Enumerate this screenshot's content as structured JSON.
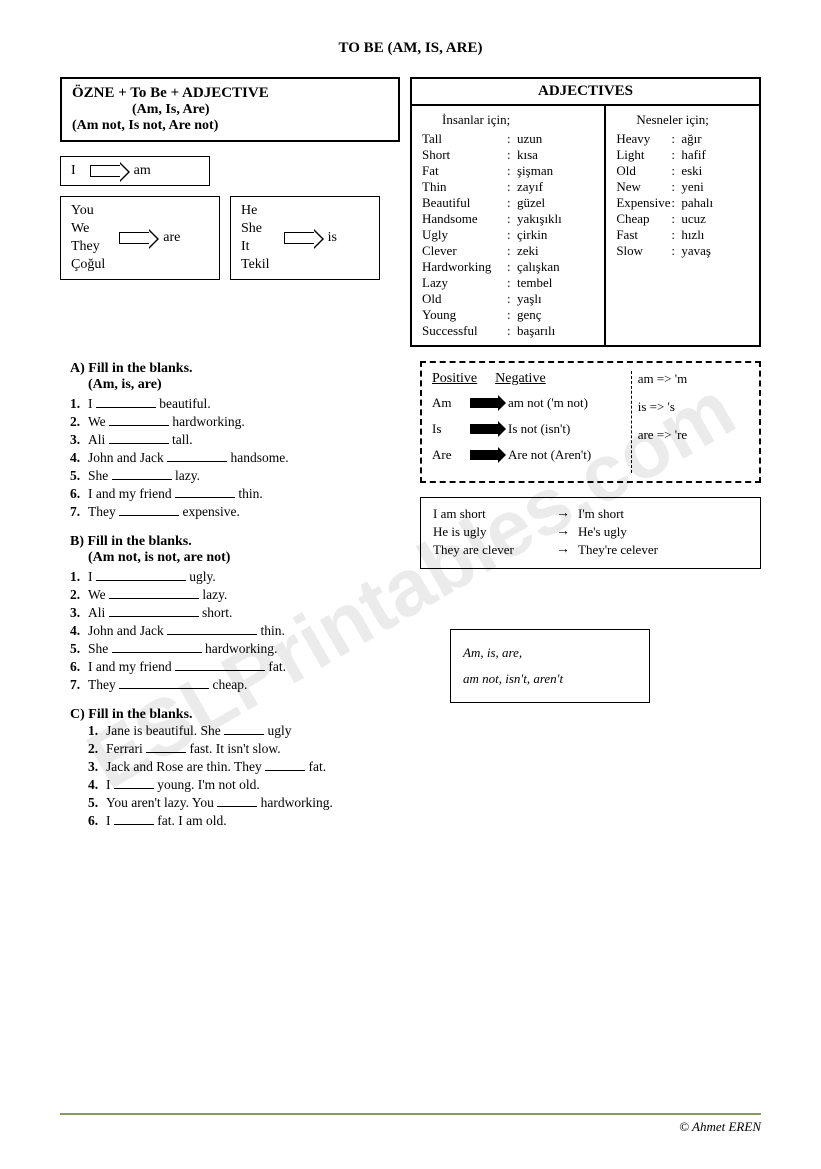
{
  "title": "TO BE (AM, IS, ARE)",
  "formula": {
    "line1": "ÖZNE   +  To Be  +  ADJECTIVE",
    "line2": "(Am, Is, Are)",
    "line3": "(Am not, Is not, Are not)"
  },
  "pronouns": {
    "i": {
      "subject": "I",
      "verb": "am"
    },
    "are": {
      "subjects": [
        "You",
        "We",
        "They",
        "Çoğul"
      ],
      "verb": "are"
    },
    "is": {
      "subjects": [
        "He",
        "She",
        "It",
        "Tekil"
      ],
      "verb": "is"
    }
  },
  "adjectives": {
    "title": "ADJECTIVES",
    "people_head": "İnsanlar için;",
    "things_head": "Nesneler için;",
    "people": [
      {
        "en": "Tall",
        "tr": "uzun"
      },
      {
        "en": "Short",
        "tr": "kısa"
      },
      {
        "en": "Fat",
        "tr": "şişman"
      },
      {
        "en": "Thin",
        "tr": "zayıf"
      },
      {
        "en": "Beautiful",
        "tr": "güzel"
      },
      {
        "en": "Handsome",
        "tr": "yakışıklı"
      },
      {
        "en": "Ugly",
        "tr": "çirkin"
      },
      {
        "en": "Clever",
        "tr": "zeki"
      },
      {
        "en": "Hardworking",
        "tr": "çalışkan"
      },
      {
        "en": "Lazy",
        "tr": "tembel"
      },
      {
        "en": "Old",
        "tr": "yaşlı"
      },
      {
        "en": "Young",
        "tr": "genç"
      },
      {
        "en": "Successful",
        "tr": "başarılı"
      }
    ],
    "things": [
      {
        "en": "Heavy",
        "tr": "ağır"
      },
      {
        "en": "Light",
        "tr": "hafif"
      },
      {
        "en": "Old",
        "tr": "eski"
      },
      {
        "en": "New",
        "tr": "yeni"
      },
      {
        "en": "Expensive",
        "tr": "pahalı"
      },
      {
        "en": "Cheap",
        "tr": "ucuz"
      },
      {
        "en": "Fast",
        "tr": "hızlı"
      },
      {
        "en": "Slow",
        "tr": "yavaş"
      }
    ]
  },
  "exA": {
    "head": "A)  Fill in the blanks.",
    "sub": "(Am, is, are)",
    "items": [
      {
        "pre": "I ",
        "post": " beautiful."
      },
      {
        "pre": "We ",
        "post": " hardworking."
      },
      {
        "pre": "Ali ",
        "post": " tall."
      },
      {
        "pre": "John and Jack ",
        "post": " handsome."
      },
      {
        "pre": "She ",
        "post": " lazy."
      },
      {
        "pre": "I and my friend ",
        "post": " thin."
      },
      {
        "pre": "They ",
        "post": " expensive."
      }
    ]
  },
  "exB": {
    "head": "B)  Fill in the blanks.",
    "sub": "(Am not, is not, are not)",
    "items": [
      {
        "pre": "I ",
        "post": " ugly."
      },
      {
        "pre": "We ",
        "post": " lazy."
      },
      {
        "pre": "Ali ",
        "post": " short."
      },
      {
        "pre": "John and Jack ",
        "post": " thin."
      },
      {
        "pre": "She ",
        "post": " hardworking."
      },
      {
        "pre": "I and my friend ",
        "post": " fat."
      },
      {
        "pre": "They ",
        "post": " cheap."
      }
    ]
  },
  "exC": {
    "head": "C)   Fill in the blanks.",
    "items": [
      {
        "pre": "Jane is beautiful. She ",
        "post": " ugly"
      },
      {
        "pre": "Ferrari ",
        "post": " fast. It isn't slow."
      },
      {
        "pre": "Jack and Rose are thin. They ",
        "post": " fat."
      },
      {
        "pre": "I ",
        "post": " young. I'm not old."
      },
      {
        "pre": "You aren't lazy. You ",
        "post": " hardworking."
      },
      {
        "pre": "I ",
        "post": " fat. I am old."
      }
    ]
  },
  "posneg": {
    "pos_label": "Positive",
    "neg_label": "Negative",
    "rows": [
      {
        "l": "Am",
        "r": "am not ('m not)"
      },
      {
        "l": "Is",
        "r": "Is not (isn't)"
      },
      {
        "l": "Are",
        "r": "Are not (Aren't)"
      }
    ],
    "short": [
      "am => 'm",
      "is  => 's",
      "are => 're"
    ]
  },
  "contractions": [
    {
      "l": "I am short",
      "r": "I'm short"
    },
    {
      "l": "He is ugly",
      "r": "He's ugly"
    },
    {
      "l": "They are clever",
      "r": "They're celever"
    }
  ],
  "hint": {
    "line1": "Am, is, are,",
    "line2": "am not, isn't, aren't"
  },
  "footer": "© Ahmet EREN",
  "watermark": "ESLPrintables.com"
}
